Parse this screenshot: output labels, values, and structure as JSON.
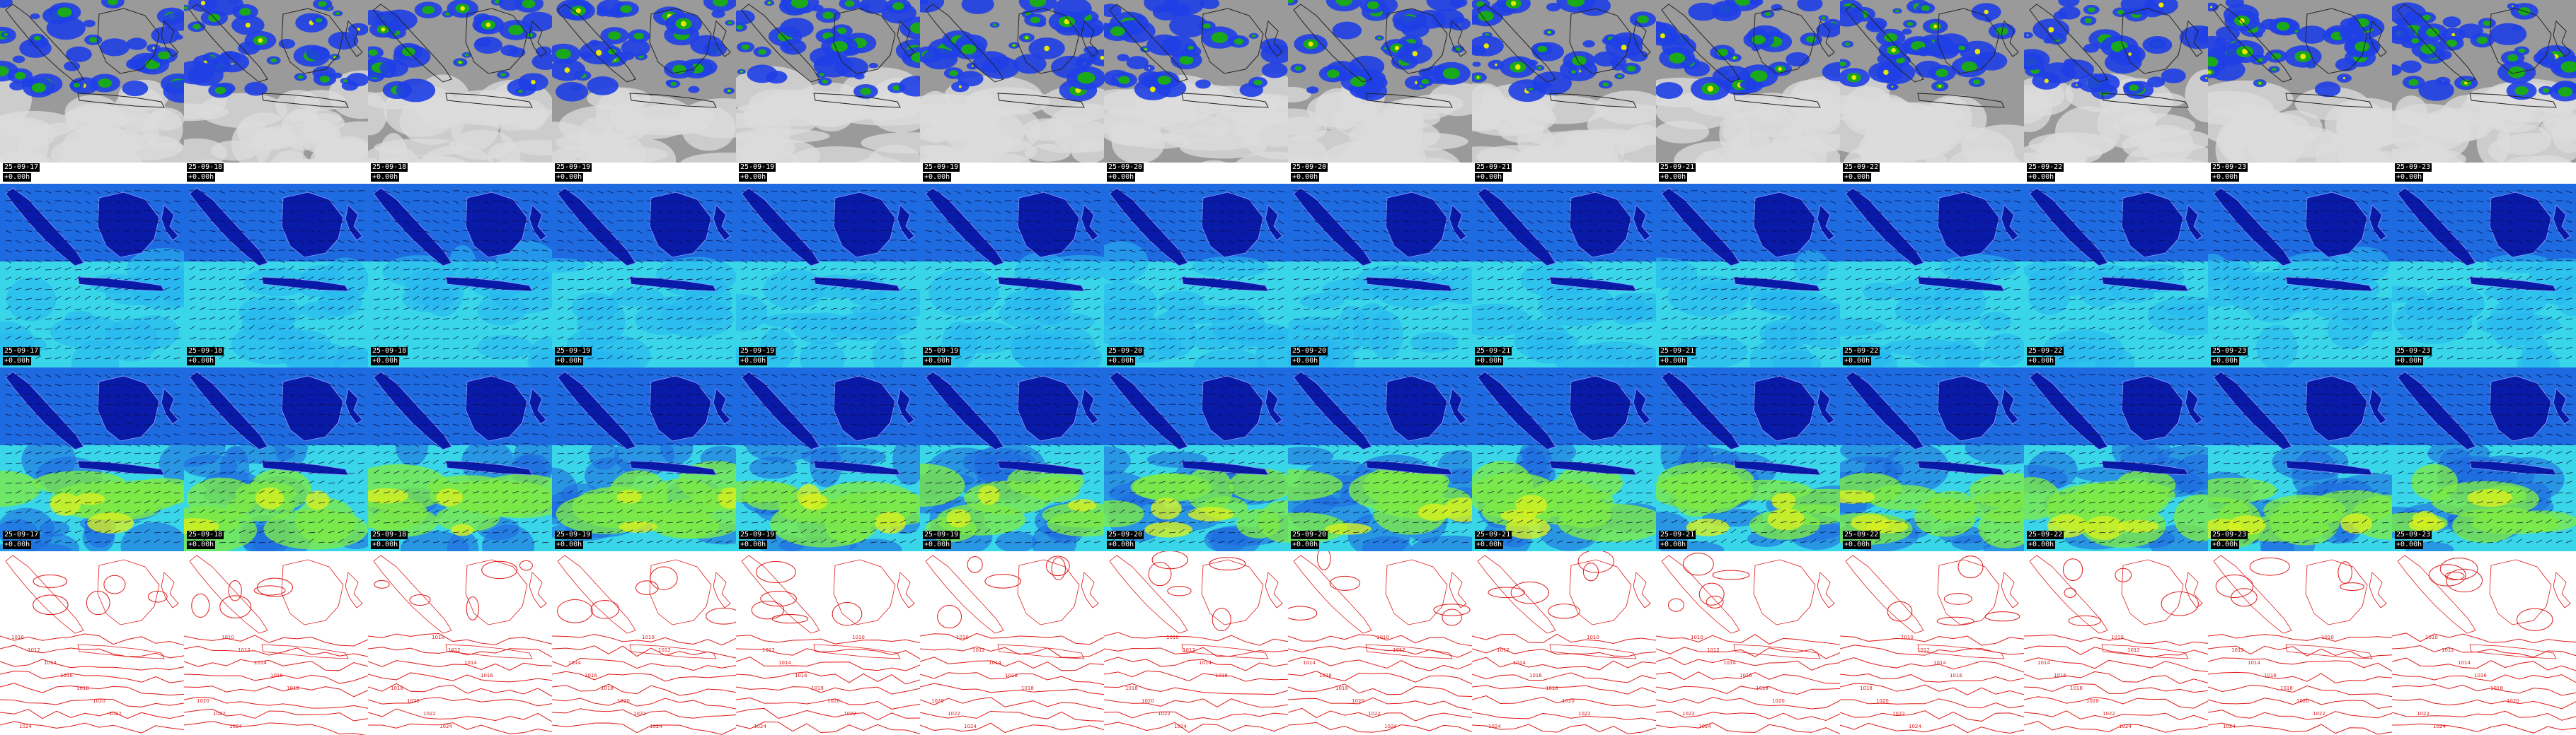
{
  "layers": [
    {
      "id": "satellite-rain",
      "palette": {
        "base": "#9a9a9a",
        "light": "#dcdcdc",
        "rain_low": "#1f3fe6",
        "rain_mid": "#1aa91a",
        "rain_high": "#e6e600"
      }
    },
    {
      "id": "wind-850",
      "palette": {
        "dark": "#0a1aa8",
        "mid": "#1e6ae0",
        "light": "#28b6f0",
        "cyan": "#38d6e8",
        "green": "#5fe08a"
      }
    },
    {
      "id": "wind-10m",
      "palette": {
        "dark": "#0a1aa8",
        "mid": "#1e6ae0",
        "cyan": "#38d6e8",
        "green": "#7cea46",
        "yellow": "#d6f020"
      }
    },
    {
      "id": "pressure-isobars",
      "palette": {
        "line": "#e01818"
      },
      "isobar_labels": [
        "1010",
        "1012",
        "1014",
        "1016",
        "1018",
        "1020",
        "1022",
        "1024"
      ]
    }
  ],
  "frames": [
    {
      "date": "25-09-17",
      "fc": "+0.00h"
    },
    {
      "date": "25-09-18",
      "fc": "+0.00h"
    },
    {
      "date": "25-09-18",
      "fc": "+0.00h"
    },
    {
      "date": "25-09-19",
      "fc": "+0.00h"
    },
    {
      "date": "25-09-19",
      "fc": "+0.00h"
    },
    {
      "date": "25-09-19",
      "fc": "+0.00h"
    },
    {
      "date": "25-09-20",
      "fc": "+0.00h"
    },
    {
      "date": "25-09-20",
      "fc": "+0.00h"
    },
    {
      "date": "25-09-21",
      "fc": "+0.00h"
    },
    {
      "date": "25-09-21",
      "fc": "+0.00h"
    },
    {
      "date": "25-09-22",
      "fc": "+0.00h"
    },
    {
      "date": "25-09-22",
      "fc": "+0.00h"
    },
    {
      "date": "25-09-23",
      "fc": "+0.00h"
    },
    {
      "date": "25-09-23",
      "fc": "+0.00h"
    }
  ]
}
